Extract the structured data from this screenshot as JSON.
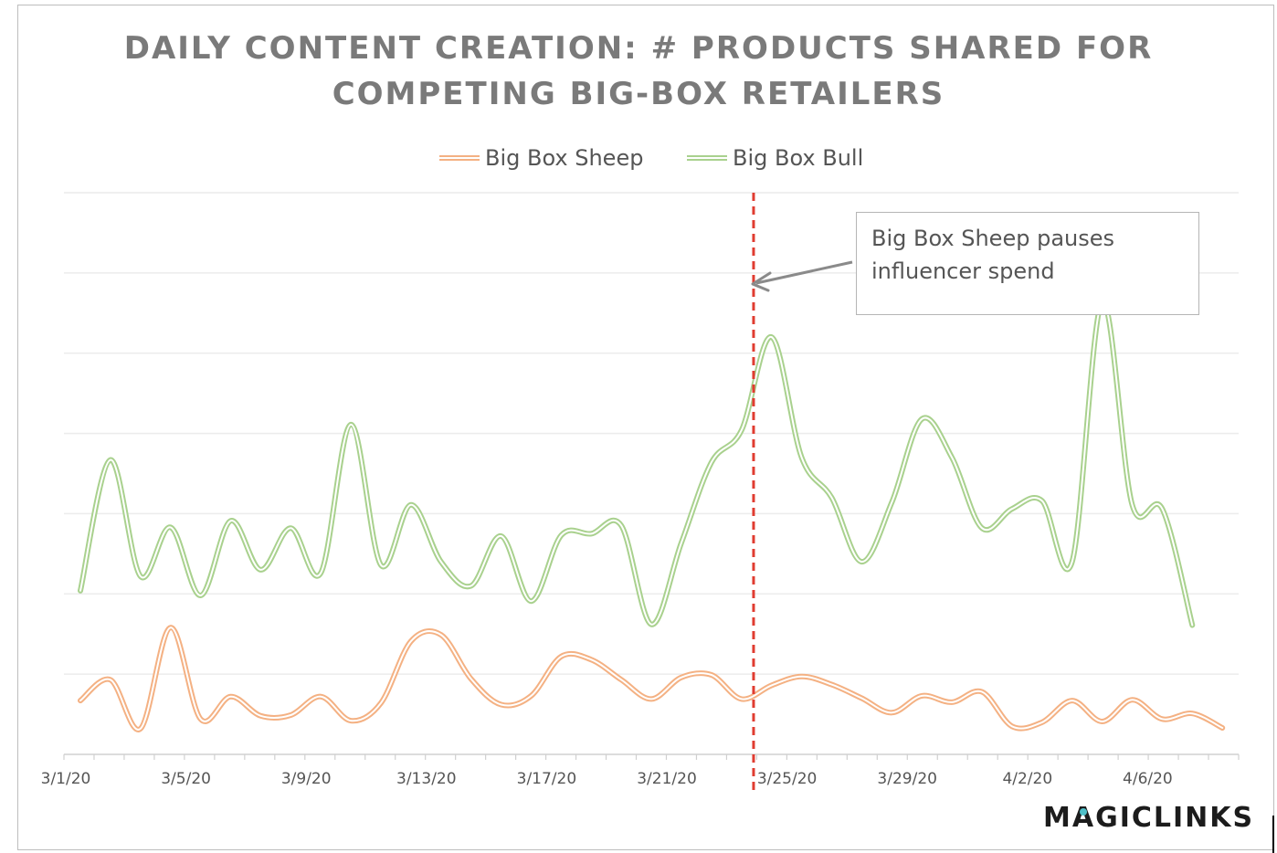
{
  "chart_data": {
    "type": "line",
    "title_lines": [
      "DAILY CONTENT CREATION: # PRODUCTS SHARED FOR",
      "COMPETING BIG-BOX RETAILERS"
    ],
    "xlabel": "",
    "ylabel": "",
    "x_tick_labels": [
      "3/1/20",
      "3/5/20",
      "3/9/20",
      "3/13/20",
      "3/17/20",
      "3/21/20",
      "3/25/20",
      "3/29/20",
      "4/2/20",
      "4/6/20"
    ],
    "x_tick_day_index": [
      0,
      4,
      8,
      12,
      16,
      20,
      24,
      28,
      32,
      36
    ],
    "x_range": [
      0,
      39
    ],
    "y_range": [
      0,
      7
    ],
    "y_tick_labels_shown": false,
    "grid": "horizontal",
    "legend_position": "top-center",
    "series": [
      {
        "name": "Big Box Sheep",
        "color": "#f4b183",
        "values": [
          0.67,
          0.93,
          0.32,
          1.58,
          0.44,
          0.72,
          0.48,
          0.49,
          0.72,
          0.42,
          0.64,
          1.41,
          1.49,
          0.94,
          0.62,
          0.73,
          1.22,
          1.18,
          0.93,
          0.69,
          0.96,
          0.99,
          0.69,
          0.86,
          0.97,
          0.87,
          0.7,
          0.52,
          0.73,
          0.65,
          0.78,
          0.35,
          0.4,
          0.67,
          0.41,
          0.68,
          0.44,
          0.51,
          0.33
        ]
      },
      {
        "name": "Big Box Bull",
        "color": "#a9d18e",
        "values": [
          2.04,
          3.67,
          2.22,
          2.83,
          1.98,
          2.91,
          2.3,
          2.82,
          2.26,
          4.11,
          2.36,
          3.11,
          2.4,
          2.1,
          2.72,
          1.91,
          2.73,
          2.75,
          2.85,
          1.62,
          2.64,
          3.64,
          4.04,
          5.2,
          3.7,
          3.2,
          2.4,
          3.14,
          4.18,
          3.7,
          2.82,
          3.06,
          3.16,
          2.4,
          5.64,
          3.11,
          3.06,
          1.61
        ]
      }
    ],
    "marker_line": {
      "day_index": 22.4,
      "color": "#e03c31",
      "style": "dashed"
    },
    "annotation": {
      "lines": [
        "Big Box Sheep pauses",
        "influencer spend"
      ]
    }
  },
  "brand": {
    "logo_text_1": "M",
    "logo_text_a": "A",
    "logo_text_2": "GICLINKS",
    "accent": "#4fc0c8"
  }
}
